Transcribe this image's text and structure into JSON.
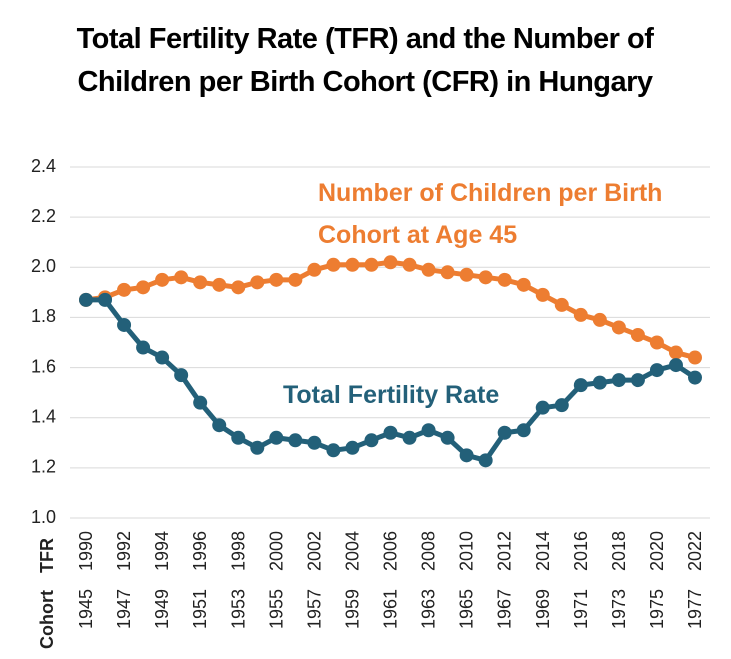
{
  "chart_data": {
    "type": "line",
    "title": "Total Fertility Rate (TFR) and the Number of Children per Birth Cohort (CFR) in Hungary",
    "category_row_labels": [
      "TFR",
      "Cohort"
    ],
    "categories": [
      "1990",
      null,
      "1992",
      null,
      "1994",
      null,
      "1996",
      null,
      "1998",
      null,
      "2000",
      null,
      "2002",
      null,
      "2004",
      null,
      "2006",
      null,
      "2008",
      null,
      "2010",
      null,
      "2012",
      null,
      "2014",
      null,
      "2016",
      null,
      "2018",
      null,
      "2020",
      null,
      "2022"
    ],
    "categories2": [
      "1945",
      null,
      "1947",
      null,
      "1949",
      null,
      "1951",
      null,
      "1953",
      null,
      "1955",
      null,
      "1957",
      null,
      "1959",
      null,
      "1961",
      null,
      "1963",
      null,
      "1965",
      null,
      "1967",
      null,
      "1969",
      null,
      "1971",
      null,
      "1973",
      null,
      "1975",
      null,
      "1977"
    ],
    "series": [
      {
        "name": "Number of Children per Birth Cohort at Age 45",
        "color": "#ed7d31",
        "values": [
          1.87,
          1.88,
          1.91,
          1.92,
          1.95,
          1.96,
          1.94,
          1.93,
          1.92,
          1.94,
          1.95,
          1.95,
          1.99,
          2.01,
          2.01,
          2.01,
          2.02,
          2.01,
          1.99,
          1.98,
          1.97,
          1.96,
          1.95,
          1.93,
          1.89,
          1.85,
          1.81,
          1.79,
          1.76,
          1.73,
          1.7,
          1.66,
          1.64
        ]
      },
      {
        "name": "Total Fertility Rate",
        "color": "#236079",
        "values": [
          1.87,
          1.87,
          1.77,
          1.68,
          1.64,
          1.57,
          1.46,
          1.37,
          1.32,
          1.28,
          1.32,
          1.31,
          1.3,
          1.27,
          1.28,
          1.31,
          1.34,
          1.32,
          1.35,
          1.32,
          1.25,
          1.23,
          1.34,
          1.35,
          1.44,
          1.45,
          1.53,
          1.54,
          1.55,
          1.55,
          1.59,
          1.61,
          1.56
        ]
      }
    ],
    "ylim": [
      1.0,
      2.4
    ],
    "yticks": [
      {
        "value": 1.0,
        "label": "1.0"
      },
      1.2,
      1.4,
      1.6,
      1.8,
      {
        "value": 2.0,
        "label": "2.0"
      },
      2.2,
      2.4
    ],
    "grid": true
  }
}
